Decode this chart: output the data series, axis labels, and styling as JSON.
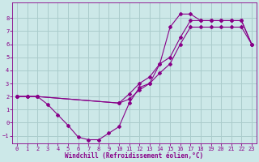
{
  "xlabel": "Windchill (Refroidissement éolien,°C)",
  "bg_color": "#cce8e8",
  "grid_color": "#aacccc",
  "line_color": "#880088",
  "xlim": [
    -0.5,
    23.5
  ],
  "ylim": [
    -1.6,
    9.2
  ],
  "yticks": [
    -1,
    0,
    1,
    2,
    3,
    4,
    5,
    6,
    7,
    8
  ],
  "xticks": [
    0,
    1,
    2,
    3,
    4,
    5,
    6,
    7,
    8,
    9,
    10,
    11,
    12,
    13,
    14,
    15,
    16,
    17,
    18,
    19,
    20,
    21,
    22,
    23
  ],
  "line1_x": [
    0,
    1,
    2,
    3,
    4,
    5,
    6,
    7,
    8,
    9,
    10,
    11,
    12,
    13,
    14,
    15,
    16,
    17,
    18,
    19,
    20,
    21,
    22,
    23
  ],
  "line1_y": [
    2.0,
    2.0,
    2.0,
    1.4,
    0.6,
    -0.2,
    -1.1,
    -1.3,
    -1.3,
    -0.8,
    -0.3,
    1.5,
    2.7,
    3.0,
    4.5,
    7.3,
    8.3,
    8.3,
    7.8,
    7.8,
    7.8,
    7.8,
    7.8,
    6.0
  ],
  "line2_x": [
    0,
    1,
    2,
    10,
    11,
    12,
    13,
    14,
    15,
    16,
    17,
    18,
    19,
    20,
    21,
    22,
    23
  ],
  "line2_y": [
    2.0,
    2.0,
    2.0,
    1.5,
    2.2,
    3.0,
    3.5,
    4.5,
    5.0,
    6.5,
    7.8,
    7.8,
    7.8,
    7.8,
    7.8,
    7.8,
    6.0
  ],
  "line3_x": [
    0,
    1,
    2,
    10,
    11,
    12,
    13,
    14,
    15,
    16,
    17,
    18,
    19,
    20,
    21,
    22,
    23
  ],
  "line3_y": [
    2.0,
    2.0,
    2.0,
    1.5,
    1.8,
    2.5,
    3.0,
    3.8,
    4.5,
    6.0,
    7.3,
    7.3,
    7.3,
    7.3,
    7.3,
    7.3,
    6.0
  ]
}
